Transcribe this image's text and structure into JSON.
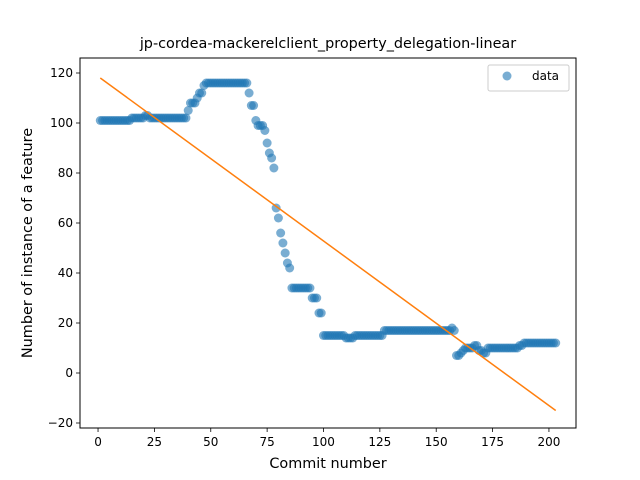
{
  "chart_data": {
    "type": "scatter",
    "title": "jp-cordea-mackerelclient_property_delegation-linear",
    "xlabel": "Commit number",
    "ylabel": "Number of instance of a feature",
    "xlim": [
      -8,
      212
    ],
    "ylim": [
      -22,
      126
    ],
    "xticks": [
      0,
      25,
      50,
      75,
      100,
      125,
      150,
      175,
      200
    ],
    "yticks": [
      -20,
      0,
      20,
      40,
      60,
      80,
      100,
      120
    ],
    "grid": false,
    "legend": {
      "position": "top-right",
      "entries": [
        "data"
      ]
    },
    "colors": {
      "data": "#1f77b4",
      "fit": "#ff7f0e"
    },
    "series": [
      {
        "name": "data",
        "kind": "scatter",
        "points": [
          [
            1,
            101
          ],
          [
            2,
            101
          ],
          [
            3,
            101
          ],
          [
            4,
            101
          ],
          [
            5,
            101
          ],
          [
            6,
            101
          ],
          [
            7,
            101
          ],
          [
            8,
            101
          ],
          [
            9,
            101
          ],
          [
            10,
            101
          ],
          [
            11,
            101
          ],
          [
            12,
            101
          ],
          [
            13,
            101
          ],
          [
            14,
            101
          ],
          [
            15,
            102
          ],
          [
            16,
            102
          ],
          [
            17,
            102
          ],
          [
            18,
            102
          ],
          [
            19,
            102
          ],
          [
            20,
            102
          ],
          [
            21,
            103
          ],
          [
            22,
            103
          ],
          [
            23,
            102
          ],
          [
            24,
            102
          ],
          [
            25,
            102
          ],
          [
            26,
            102
          ],
          [
            27,
            102
          ],
          [
            28,
            102
          ],
          [
            29,
            102
          ],
          [
            30,
            102
          ],
          [
            31,
            102
          ],
          [
            32,
            102
          ],
          [
            33,
            102
          ],
          [
            34,
            102
          ],
          [
            35,
            102
          ],
          [
            36,
            102
          ],
          [
            37,
            102
          ],
          [
            38,
            102
          ],
          [
            39,
            102
          ],
          [
            40,
            105
          ],
          [
            41,
            108
          ],
          [
            42,
            108
          ],
          [
            43,
            108
          ],
          [
            44,
            110
          ],
          [
            45,
            112
          ],
          [
            46,
            112
          ],
          [
            47,
            115
          ],
          [
            48,
            116
          ],
          [
            49,
            116
          ],
          [
            50,
            116
          ],
          [
            51,
            116
          ],
          [
            52,
            116
          ],
          [
            53,
            116
          ],
          [
            54,
            116
          ],
          [
            55,
            116
          ],
          [
            56,
            116
          ],
          [
            57,
            116
          ],
          [
            58,
            116
          ],
          [
            59,
            116
          ],
          [
            60,
            116
          ],
          [
            61,
            116
          ],
          [
            62,
            116
          ],
          [
            63,
            116
          ],
          [
            64,
            116
          ],
          [
            65,
            116
          ],
          [
            66,
            116
          ],
          [
            67,
            112
          ],
          [
            68,
            107
          ],
          [
            69,
            107
          ],
          [
            70,
            101
          ],
          [
            71,
            99
          ],
          [
            72,
            99
          ],
          [
            73,
            99
          ],
          [
            74,
            97
          ],
          [
            75,
            92
          ],
          [
            76,
            88
          ],
          [
            77,
            86
          ],
          [
            78,
            82
          ],
          [
            79,
            66
          ],
          [
            80,
            62
          ],
          [
            81,
            56
          ],
          [
            82,
            52
          ],
          [
            83,
            48
          ],
          [
            84,
            44
          ],
          [
            85,
            42
          ],
          [
            86,
            34
          ],
          [
            87,
            34
          ],
          [
            88,
            34
          ],
          [
            89,
            34
          ],
          [
            90,
            34
          ],
          [
            91,
            34
          ],
          [
            92,
            34
          ],
          [
            93,
            34
          ],
          [
            94,
            34
          ],
          [
            95,
            30
          ],
          [
            96,
            30
          ],
          [
            97,
            30
          ],
          [
            98,
            24
          ],
          [
            99,
            24
          ],
          [
            100,
            15
          ],
          [
            101,
            15
          ],
          [
            102,
            15
          ],
          [
            103,
            15
          ],
          [
            104,
            15
          ],
          [
            105,
            15
          ],
          [
            106,
            15
          ],
          [
            107,
            15
          ],
          [
            108,
            15
          ],
          [
            109,
            15
          ],
          [
            110,
            14
          ],
          [
            111,
            14
          ],
          [
            112,
            14
          ],
          [
            113,
            14
          ],
          [
            114,
            15
          ],
          [
            115,
            15
          ],
          [
            116,
            15
          ],
          [
            117,
            15
          ],
          [
            118,
            15
          ],
          [
            119,
            15
          ],
          [
            120,
            15
          ],
          [
            121,
            15
          ],
          [
            122,
            15
          ],
          [
            123,
            15
          ],
          [
            124,
            15
          ],
          [
            125,
            15
          ],
          [
            126,
            15
          ],
          [
            127,
            17
          ],
          [
            128,
            17
          ],
          [
            129,
            17
          ],
          [
            130,
            17
          ],
          [
            131,
            17
          ],
          [
            132,
            17
          ],
          [
            133,
            17
          ],
          [
            134,
            17
          ],
          [
            135,
            17
          ],
          [
            136,
            17
          ],
          [
            137,
            17
          ],
          [
            138,
            17
          ],
          [
            139,
            17
          ],
          [
            140,
            17
          ],
          [
            141,
            17
          ],
          [
            142,
            17
          ],
          [
            143,
            17
          ],
          [
            144,
            17
          ],
          [
            145,
            17
          ],
          [
            146,
            17
          ],
          [
            147,
            17
          ],
          [
            148,
            17
          ],
          [
            149,
            17
          ],
          [
            150,
            17
          ],
          [
            151,
            17
          ],
          [
            152,
            17
          ],
          [
            153,
            17
          ],
          [
            154,
            17
          ],
          [
            155,
            17
          ],
          [
            156,
            17
          ],
          [
            157,
            18
          ],
          [
            158,
            17
          ],
          [
            159,
            7
          ],
          [
            160,
            7
          ],
          [
            161,
            8
          ],
          [
            162,
            9
          ],
          [
            163,
            10
          ],
          [
            164,
            10
          ],
          [
            165,
            10
          ],
          [
            166,
            10
          ],
          [
            167,
            11
          ],
          [
            168,
            11
          ],
          [
            169,
            9
          ],
          [
            170,
            9
          ],
          [
            171,
            8
          ],
          [
            172,
            8
          ],
          [
            173,
            10
          ],
          [
            174,
            10
          ],
          [
            175,
            10
          ],
          [
            176,
            10
          ],
          [
            177,
            10
          ],
          [
            178,
            10
          ],
          [
            179,
            10
          ],
          [
            180,
            10
          ],
          [
            181,
            10
          ],
          [
            182,
            10
          ],
          [
            183,
            10
          ],
          [
            184,
            10
          ],
          [
            185,
            10
          ],
          [
            186,
            10
          ],
          [
            187,
            11
          ],
          [
            188,
            11
          ],
          [
            189,
            12
          ],
          [
            190,
            12
          ],
          [
            191,
            12
          ],
          [
            192,
            12
          ],
          [
            193,
            12
          ],
          [
            194,
            12
          ],
          [
            195,
            12
          ],
          [
            196,
            12
          ],
          [
            197,
            12
          ],
          [
            198,
            12
          ],
          [
            199,
            12
          ],
          [
            200,
            12
          ],
          [
            201,
            12
          ],
          [
            202,
            12
          ],
          [
            203,
            12
          ]
        ]
      },
      {
        "kind": "line",
        "points": [
          [
            1,
            118
          ],
          [
            203,
            -15
          ]
        ]
      }
    ]
  }
}
